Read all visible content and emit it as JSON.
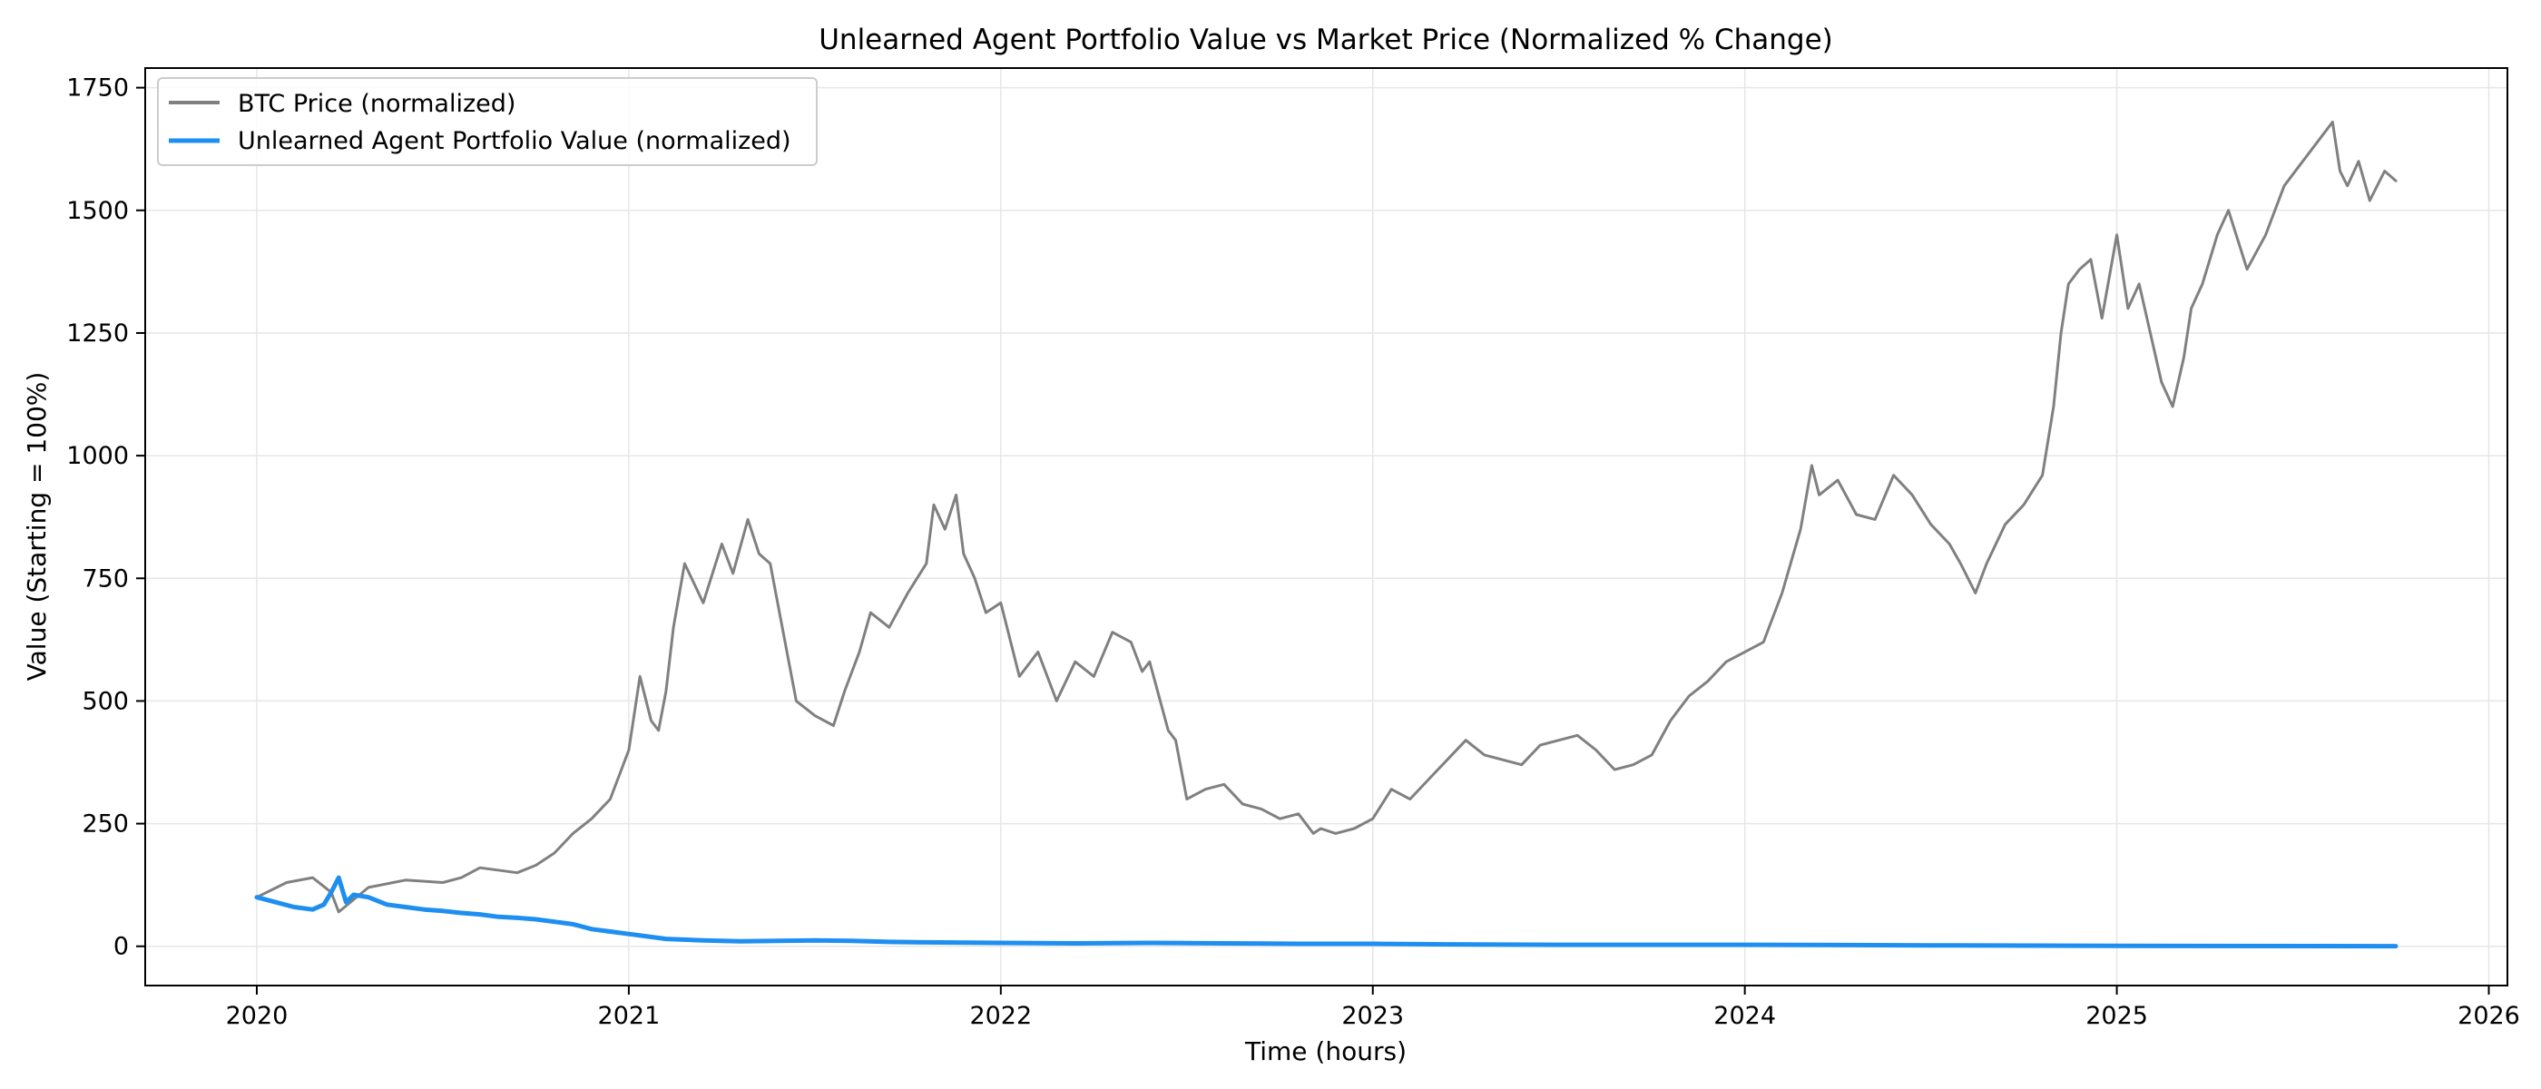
{
  "chart_data": {
    "type": "line",
    "title": "Unlearned Agent Portfolio Value vs Market Price (Normalized % Change)",
    "xlabel": "Time (hours)",
    "ylabel": "Value (Starting = 100%)",
    "xlim": [
      2019.7,
      2026.05
    ],
    "ylim": [
      -80,
      1790
    ],
    "x_ticks": [
      2020,
      2021,
      2022,
      2023,
      2024,
      2025,
      2026
    ],
    "x_tick_labels": [
      "2020",
      "2021",
      "2022",
      "2023",
      "2024",
      "2025",
      "2026"
    ],
    "y_ticks": [
      0,
      250,
      500,
      750,
      1000,
      1250,
      1500,
      1750
    ],
    "y_tick_labels": [
      "0",
      "250",
      "500",
      "750",
      "1000",
      "1250",
      "1500",
      "1750"
    ],
    "grid": true,
    "legend_position": "top-left",
    "series": [
      {
        "name": "BTC Price (normalized)",
        "color": "#808080",
        "x": [
          2020.0,
          2020.08,
          2020.15,
          2020.2,
          2020.22,
          2020.3,
          2020.4,
          2020.5,
          2020.55,
          2020.6,
          2020.7,
          2020.75,
          2020.8,
          2020.85,
          2020.9,
          2020.95,
          2021.0,
          2021.03,
          2021.06,
          2021.08,
          2021.1,
          2021.12,
          2021.15,
          2021.2,
          2021.25,
          2021.28,
          2021.32,
          2021.35,
          2021.38,
          2021.4,
          2021.45,
          2021.5,
          2021.55,
          2021.58,
          2021.62,
          2021.65,
          2021.7,
          2021.75,
          2021.8,
          2021.82,
          2021.85,
          2021.88,
          2021.9,
          2021.93,
          2021.96,
          2022.0,
          2022.05,
          2022.1,
          2022.15,
          2022.2,
          2022.25,
          2022.3,
          2022.35,
          2022.38,
          2022.4,
          2022.45,
          2022.47,
          2022.5,
          2022.55,
          2022.6,
          2022.65,
          2022.7,
          2022.75,
          2022.8,
          2022.84,
          2022.86,
          2022.9,
          2022.95,
          2023.0,
          2023.05,
          2023.1,
          2023.15,
          2023.2,
          2023.25,
          2023.3,
          2023.35,
          2023.4,
          2023.45,
          2023.5,
          2023.55,
          2023.6,
          2023.65,
          2023.7,
          2023.75,
          2023.8,
          2023.85,
          2023.9,
          2023.95,
          2024.0,
          2024.05,
          2024.1,
          2024.15,
          2024.18,
          2024.2,
          2024.25,
          2024.3,
          2024.35,
          2024.4,
          2024.45,
          2024.5,
          2024.55,
          2024.58,
          2024.62,
          2024.65,
          2024.7,
          2024.75,
          2024.8,
          2024.83,
          2024.85,
          2024.87,
          2024.9,
          2024.93,
          2024.96,
          2025.0,
          2025.03,
          2025.06,
          2025.09,
          2025.12,
          2025.15,
          2025.18,
          2025.2,
          2025.23,
          2025.27,
          2025.3,
          2025.35,
          2025.4,
          2025.45,
          2025.5,
          2025.55,
          2025.58,
          2025.6,
          2025.62,
          2025.65,
          2025.68,
          2025.72,
          2025.75
        ],
        "values": [
          100,
          130,
          140,
          110,
          70,
          120,
          135,
          130,
          140,
          160,
          150,
          165,
          190,
          230,
          260,
          300,
          400,
          550,
          460,
          440,
          520,
          650,
          780,
          700,
          820,
          760,
          870,
          800,
          780,
          700,
          500,
          470,
          450,
          520,
          600,
          680,
          650,
          720,
          780,
          900,
          850,
          920,
          800,
          750,
          680,
          700,
          550,
          600,
          500,
          580,
          550,
          640,
          620,
          560,
          580,
          440,
          420,
          300,
          320,
          330,
          290,
          280,
          260,
          270,
          230,
          240,
          230,
          240,
          260,
          320,
          300,
          340,
          380,
          420,
          390,
          380,
          370,
          410,
          420,
          430,
          400,
          360,
          370,
          390,
          460,
          510,
          540,
          580,
          600,
          620,
          720,
          850,
          980,
          920,
          950,
          880,
          870,
          960,
          920,
          860,
          820,
          780,
          720,
          780,
          860,
          900,
          960,
          1100,
          1250,
          1350,
          1380,
          1400,
          1280,
          1450,
          1300,
          1350,
          1250,
          1150,
          1100,
          1200,
          1300,
          1350,
          1450,
          1500,
          1380,
          1450,
          1550,
          1600,
          1650,
          1680,
          1580,
          1550,
          1600,
          1520,
          1580,
          1560
        ]
      },
      {
        "name": "Unlearned Agent Portfolio Value (normalized)",
        "color": "#1e8ff0",
        "x": [
          2020.0,
          2020.05,
          2020.1,
          2020.15,
          2020.18,
          2020.2,
          2020.22,
          2020.24,
          2020.26,
          2020.3,
          2020.35,
          2020.4,
          2020.45,
          2020.5,
          2020.55,
          2020.6,
          2020.65,
          2020.7,
          2020.75,
          2020.8,
          2020.85,
          2020.9,
          2020.95,
          2021.0,
          2021.05,
          2021.1,
          2021.2,
          2021.3,
          2021.4,
          2021.5,
          2021.6,
          2021.7,
          2021.8,
          2022.0,
          2022.2,
          2022.4,
          2022.6,
          2022.8,
          2023.0,
          2023.2,
          2023.5,
          2024.0,
          2024.5,
          2025.0,
          2025.5,
          2025.75
        ],
        "values": [
          100,
          90,
          80,
          75,
          85,
          110,
          140,
          90,
          105,
          100,
          85,
          80,
          75,
          72,
          68,
          65,
          60,
          58,
          55,
          50,
          45,
          35,
          30,
          25,
          20,
          15,
          12,
          10,
          11,
          12,
          11,
          9,
          8,
          7,
          6,
          7,
          6,
          5,
          5,
          4,
          3,
          3,
          2,
          1,
          0.5,
          0.3
        ]
      }
    ]
  }
}
